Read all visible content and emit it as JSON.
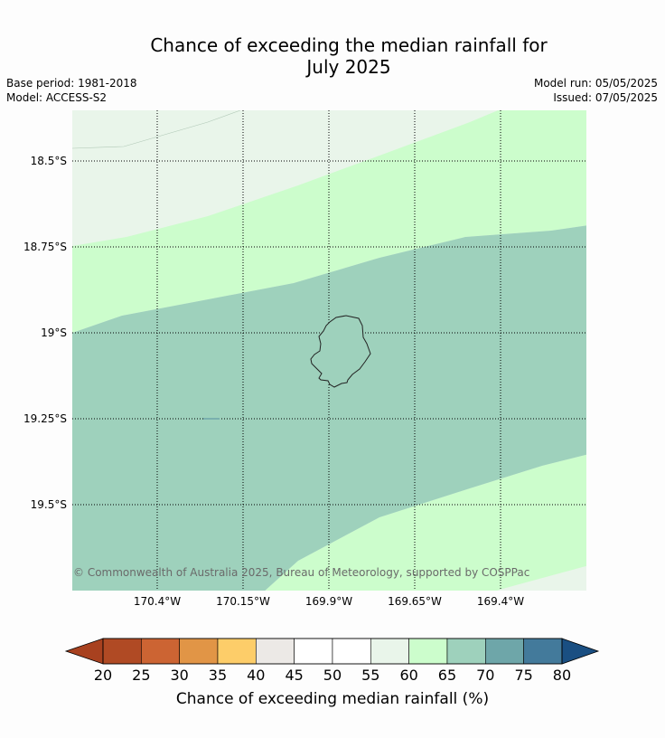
{
  "title": {
    "line1": "Chance of exceeding the median rainfall for",
    "line2": "July 2025"
  },
  "meta": {
    "base_period": "Base period: 1981-2018",
    "model": "Model: ACCESS-S2",
    "model_run": "Model run: 05/05/2025",
    "issued": "Issued: 07/05/2025"
  },
  "map": {
    "latitude_labels": [
      "18.5°S",
      "18.75°S",
      "19°S",
      "19.25°S",
      "19.5°S"
    ],
    "longitude_labels": [
      "170.4°W",
      "170.15°W",
      "169.9°W",
      "169.65°W",
      "169.4°W"
    ],
    "copyright": "© Commonwealth of Australia 2025, Bureau of Meteorology, supported by COSPPac",
    "zone_colors": {
      "45-60": "#e9f5ea",
      "60-65": "#ccfdcc",
      "65-70": "#9ed1bc"
    }
  },
  "colorbar": {
    "title": "Chance of exceeding median rainfall (%)",
    "ticks": [
      "20",
      "25",
      "30",
      "35",
      "40",
      "45",
      "50",
      "55",
      "60",
      "65",
      "70",
      "75",
      "80"
    ],
    "colors": [
      "#b04a24",
      "#cc6433",
      "#e19546",
      "#fdcd69",
      "#ece9e6",
      "#ffffff",
      "#ffffff",
      "#e9f5ea",
      "#ccfdcc",
      "#9ed1bc",
      "#6ea6a9",
      "#437a9b"
    ],
    "under_color": "#a8411f",
    "over_color": "#1a4f82"
  }
}
